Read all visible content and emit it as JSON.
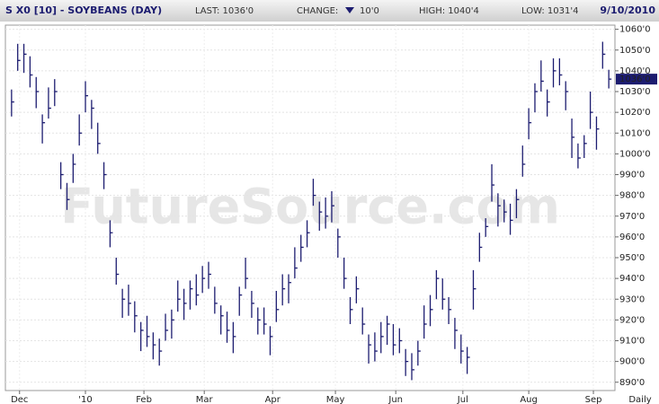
{
  "chart_data": {
    "type": "ohlc",
    "title": "S X0 [10] - SOYBEANS (DAY)",
    "header": {
      "last": "LAST: 1036'0",
      "change_label": "CHANGE:",
      "change": "10'0",
      "high": "HIGH: 1040'4",
      "low": "LOW: 1031'4",
      "date": "9/10/2010"
    },
    "last_label": "1036'0",
    "last_value": 1036,
    "watermark": "FutureSource.com",
    "period": "Daily",
    "color": "#1c1c70",
    "grid": true,
    "x": [
      0,
      1,
      2,
      3,
      4,
      5,
      6,
      7,
      8,
      9,
      10,
      11,
      12,
      13,
      14,
      15,
      16,
      17,
      18,
      19,
      20,
      21,
      22,
      23,
      24,
      25,
      26,
      27,
      28,
      29,
      30,
      31,
      32,
      33,
      34,
      35,
      36,
      37,
      38,
      39,
      40,
      41,
      42,
      43,
      44,
      45,
      46,
      47,
      48,
      49,
      50,
      51,
      52,
      53,
      54,
      55,
      56,
      57,
      58,
      59,
      60,
      61,
      62,
      63,
      64,
      65,
      66,
      67,
      68,
      69,
      70,
      71,
      72,
      73,
      74,
      75,
      76,
      77,
      78,
      79,
      80,
      81,
      82,
      83,
      84,
      85,
      86,
      87,
      88,
      89,
      90,
      91,
      92,
      93,
      94,
      95,
      96,
      97
    ],
    "series": [
      {
        "high": [
          1031,
          1053,
          1053,
          1047,
          1037,
          1019,
          1032,
          1036,
          996,
          986,
          1000,
          1019,
          1035,
          1026,
          1015,
          996,
          968,
          950,
          935,
          937,
          929,
          919,
          922,
          914,
          911,
          923,
          925,
          939,
          935,
          939,
          942,
          946,
          948,
          936,
          927,
          924,
          919,
          936,
          950,
          934,
          926,
          926,
          917,
          934,
          942,
          942,
          955,
          961,
          968,
          988,
          977,
          979,
          982,
          964,
          950,
          931,
          941,
          926,
          913,
          914,
          919,
          922,
          918,
          916,
          906,
          904,
          910,
          927,
          932,
          944,
          940,
          931,
          921,
          913,
          907,
          944,
          962,
          969,
          995,
          981,
          978,
          976,
          983,
          1004,
          1022,
          1034,
          1045,
          1031,
          1046,
          1046,
          1035,
          1017,
          1005,
          1009,
          1030,
          1018,
          1054,
          1040.5
        ],
        "low": [
          1018,
          1040,
          1039,
          1032,
          1022,
          1005,
          1017,
          1023,
          983,
          973,
          986,
          1004,
          1020,
          1012,
          1000,
          983,
          955,
          937,
          921,
          922,
          914,
          905,
          907,
          901,
          898,
          910,
          911,
          924,
          920,
          925,
          927,
          933,
          935,
          923,
          913,
          909,
          904,
          922,
          935,
          921,
          913,
          913,
          903,
          919,
          927,
          928,
          940,
          948,
          955,
          975,
          963,
          964,
          967,
          950,
          935,
          918,
          928,
          913,
          899,
          900,
          904,
          908,
          903,
          904,
          893,
          891,
          898,
          911,
          917,
          930,
          925,
          918,
          906,
          899,
          894,
          925,
          948,
          960,
          977,
          965,
          967,
          961,
          969,
          989,
          1007,
          1020,
          1030,
          1018,
          1032,
          1033,
          1021,
          998,
          993,
          998,
          1012,
          1002,
          1041,
          1031.5
        ],
        "close": [
          1025,
          1045,
          1048,
          1038,
          1030,
          1015,
          1022,
          1030,
          990,
          978,
          995,
          1010,
          1028,
          1022,
          1005,
          990,
          962,
          942,
          930,
          928,
          922,
          915,
          912,
          908,
          905,
          915,
          920,
          930,
          928,
          935,
          932,
          940,
          942,
          928,
          922,
          915,
          912,
          932,
          940,
          928,
          920,
          918,
          912,
          925,
          935,
          938,
          945,
          955,
          962,
          980,
          972,
          970,
          975,
          960,
          940,
          925,
          935,
          918,
          908,
          905,
          912,
          918,
          908,
          910,
          900,
          896,
          905,
          918,
          925,
          940,
          930,
          925,
          915,
          905,
          902,
          935,
          955,
          965,
          985,
          975,
          972,
          968,
          978,
          995,
          1015,
          1030,
          1035,
          1025,
          1040,
          1038,
          1030,
          1008,
          998,
          1005,
          1020,
          1012,
          1048,
          1036
        ]
      }
    ],
    "xlim": [
      -1,
      98
    ],
    "xticks": [
      {
        "value": 1.3,
        "label": "Dec"
      },
      {
        "value": 12,
        "label": "'10"
      },
      {
        "value": 21.5,
        "label": "Feb"
      },
      {
        "value": 31.3,
        "label": "Mar"
      },
      {
        "value": 42.4,
        "label": "Apr"
      },
      {
        "value": 52.6,
        "label": "May"
      },
      {
        "value": 62.4,
        "label": "Jun"
      },
      {
        "value": 73.3,
        "label": "Jul"
      },
      {
        "value": 84,
        "label": "Aug"
      },
      {
        "value": 94.5,
        "label": "Sep"
      }
    ],
    "ylim": [
      886,
      1062
    ],
    "yticks": [
      {
        "value": 890,
        "label": "890'0"
      },
      {
        "value": 900,
        "label": "900'0"
      },
      {
        "value": 910,
        "label": "910'0"
      },
      {
        "value": 920,
        "label": "920'0"
      },
      {
        "value": 930,
        "label": "930'0"
      },
      {
        "value": 940,
        "label": "940'0"
      },
      {
        "value": 950,
        "label": "950'0"
      },
      {
        "value": 960,
        "label": "960'0"
      },
      {
        "value": 970,
        "label": "970'0"
      },
      {
        "value": 980,
        "label": "980'0"
      },
      {
        "value": 990,
        "label": "990'0"
      },
      {
        "value": 1000,
        "label": "1000'0"
      },
      {
        "value": 1010,
        "label": "1010'0"
      },
      {
        "value": 1020,
        "label": "1020'0"
      },
      {
        "value": 1030,
        "label": "1030'0"
      },
      {
        "value": 1040,
        "label": "1040'0"
      },
      {
        "value": 1050,
        "label": "1050'0"
      },
      {
        "value": 1060,
        "label": "1060'0"
      }
    ]
  }
}
